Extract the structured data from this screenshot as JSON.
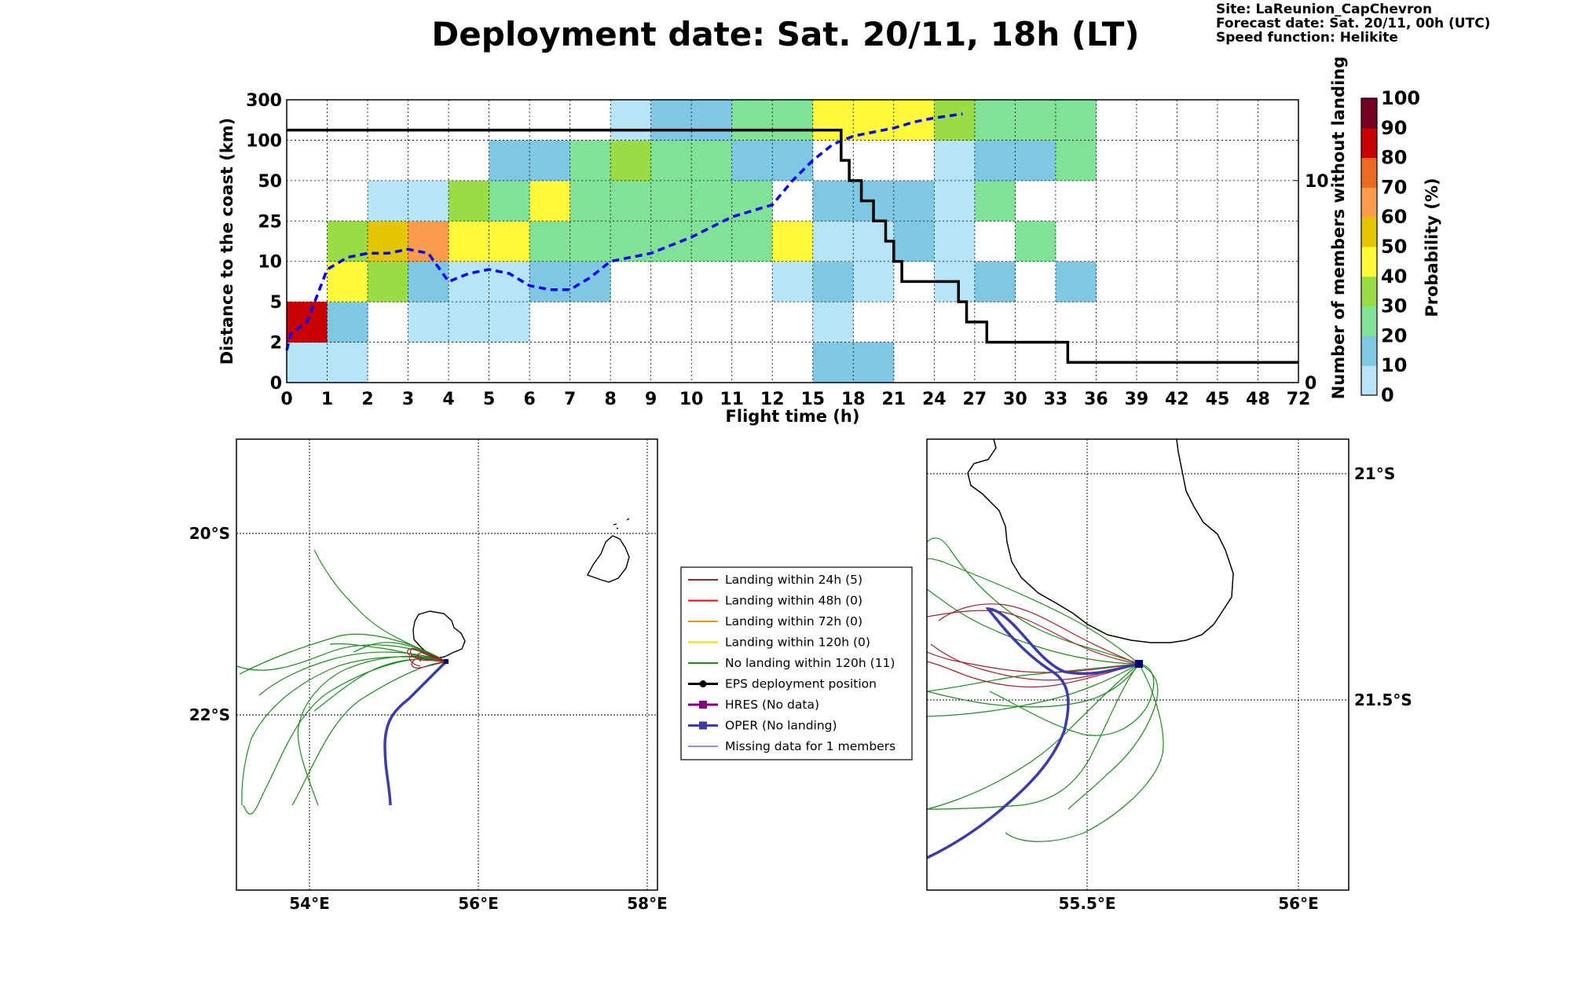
{
  "title": "Deployment date: Sat. 20/11, 18h (LT)",
  "info": [
    "Site: LaReunion_CapChevron",
    "Forecast date: Sat. 20/11, 00h (UTC)",
    "Speed function: Helikite"
  ],
  "colors": {
    "prob": [
      "#b8e4f8",
      "#7ec8e3",
      "#80e197",
      "#99dc43",
      "#fffb3c",
      "#e3c500",
      "#fb9c4f",
      "#ea6923",
      "#c90000",
      "#720022"
    ],
    "median": "#0000ff",
    "members": "#000000",
    "landing24": "#a0232d",
    "landing48": "#ff0000",
    "landing72": "#ff8c00",
    "landing120": "#ffd700",
    "nolanding": "#1c8c1c",
    "eps": "#000000",
    "hres": "#800080",
    "oper": "#3c3ca8",
    "missing": "#4b4bff"
  },
  "chart_data": [
    {
      "type": "heatmap",
      "xlabel": "Flight time (h)",
      "ylabel": "Distance to the coast (km)",
      "y2label": "Number of members without landing",
      "colorbar_label": "Probability (%)",
      "x_ticks": [
        "0",
        "1",
        "2",
        "3",
        "4",
        "5",
        "6",
        "7",
        "8",
        "9",
        "10",
        "11",
        "12",
        "15",
        "18",
        "21",
        "24",
        "27",
        "30",
        "33",
        "36",
        "39",
        "42",
        "45",
        "48",
        "72"
      ],
      "y_ticks": [
        "0",
        "2",
        "5",
        "10",
        "25",
        "50",
        "100",
        "300"
      ],
      "y2_ticks": [
        "0",
        "10"
      ],
      "y2lim": [
        0,
        14
      ],
      "colorbar_ticks": [
        "0",
        "10",
        "20",
        "30",
        "40",
        "50",
        "60",
        "70",
        "80",
        "90",
        "100"
      ],
      "grid": true,
      "cells": [
        {
          "col": 0,
          "row": 0,
          "c": 0
        },
        {
          "col": 1,
          "row": 0,
          "c": 0
        },
        {
          "col": 13,
          "row": 0,
          "c": 1
        },
        {
          "col": 14,
          "row": 0,
          "c": 1
        },
        {
          "col": 0,
          "row": 1,
          "c": 8
        },
        {
          "col": 1,
          "row": 1,
          "c": 1
        },
        {
          "col": 3,
          "row": 1,
          "c": 0
        },
        {
          "col": 4,
          "row": 1,
          "c": 0
        },
        {
          "col": 5,
          "row": 1,
          "c": 0
        },
        {
          "col": 13,
          "row": 1,
          "c": 0
        },
        {
          "col": 1,
          "row": 2,
          "c": 4
        },
        {
          "col": 2,
          "row": 2,
          "c": 3
        },
        {
          "col": 3,
          "row": 2,
          "c": 1
        },
        {
          "col": 4,
          "row": 2,
          "c": 0
        },
        {
          "col": 5,
          "row": 2,
          "c": 0
        },
        {
          "col": 6,
          "row": 2,
          "c": 1
        },
        {
          "col": 7,
          "row": 2,
          "c": 1
        },
        {
          "col": 12,
          "row": 2,
          "c": 0
        },
        {
          "col": 13,
          "row": 2,
          "c": 1
        },
        {
          "col": 14,
          "row": 2,
          "c": 0
        },
        {
          "col": 16,
          "row": 2,
          "c": 0
        },
        {
          "col": 17,
          "row": 2,
          "c": 1
        },
        {
          "col": 19,
          "row": 2,
          "c": 1
        },
        {
          "col": 1,
          "row": 3,
          "c": 3
        },
        {
          "col": 2,
          "row": 3,
          "c": 5
        },
        {
          "col": 3,
          "row": 3,
          "c": 6
        },
        {
          "col": 4,
          "row": 3,
          "c": 4
        },
        {
          "col": 5,
          "row": 3,
          "c": 4
        },
        {
          "col": 6,
          "row": 3,
          "c": 2
        },
        {
          "col": 7,
          "row": 3,
          "c": 2
        },
        {
          "col": 8,
          "row": 3,
          "c": 2
        },
        {
          "col": 9,
          "row": 3,
          "c": 2
        },
        {
          "col": 10,
          "row": 3,
          "c": 2
        },
        {
          "col": 11,
          "row": 3,
          "c": 2
        },
        {
          "col": 12,
          "row": 3,
          "c": 4
        },
        {
          "col": 13,
          "row": 3,
          "c": 0
        },
        {
          "col": 14,
          "row": 3,
          "c": 0
        },
        {
          "col": 15,
          "row": 3,
          "c": 1
        },
        {
          "col": 16,
          "row": 3,
          "c": 0
        },
        {
          "col": 18,
          "row": 3,
          "c": 2
        },
        {
          "col": 2,
          "row": 4,
          "c": 0
        },
        {
          "col": 3,
          "row": 4,
          "c": 0
        },
        {
          "col": 4,
          "row": 4,
          "c": 3
        },
        {
          "col": 5,
          "row": 4,
          "c": 2
        },
        {
          "col": 6,
          "row": 4,
          "c": 4
        },
        {
          "col": 7,
          "row": 4,
          "c": 2
        },
        {
          "col": 8,
          "row": 4,
          "c": 2
        },
        {
          "col": 9,
          "row": 4,
          "c": 2
        },
        {
          "col": 10,
          "row": 4,
          "c": 2
        },
        {
          "col": 11,
          "row": 4,
          "c": 2
        },
        {
          "col": 13,
          "row": 4,
          "c": 1
        },
        {
          "col": 14,
          "row": 4,
          "c": 1
        },
        {
          "col": 15,
          "row": 4,
          "c": 1
        },
        {
          "col": 16,
          "row": 4,
          "c": 0
        },
        {
          "col": 17,
          "row": 4,
          "c": 2
        },
        {
          "col": 5,
          "row": 5,
          "c": 1
        },
        {
          "col": 6,
          "row": 5,
          "c": 1
        },
        {
          "col": 7,
          "row": 5,
          "c": 2
        },
        {
          "col": 8,
          "row": 5,
          "c": 3
        },
        {
          "col": 9,
          "row": 5,
          "c": 2
        },
        {
          "col": 10,
          "row": 5,
          "c": 2
        },
        {
          "col": 11,
          "row": 5,
          "c": 1
        },
        {
          "col": 12,
          "row": 5,
          "c": 1
        },
        {
          "col": 16,
          "row": 5,
          "c": 0
        },
        {
          "col": 17,
          "row": 5,
          "c": 1
        },
        {
          "col": 18,
          "row": 5,
          "c": 1
        },
        {
          "col": 19,
          "row": 5,
          "c": 2
        },
        {
          "col": 8,
          "row": 6,
          "c": 0
        },
        {
          "col": 9,
          "row": 6,
          "c": 1
        },
        {
          "col": 10,
          "row": 6,
          "c": 1
        },
        {
          "col": 11,
          "row": 6,
          "c": 2
        },
        {
          "col": 12,
          "row": 6,
          "c": 2
        },
        {
          "col": 13,
          "row": 6,
          "c": 4
        },
        {
          "col": 14,
          "row": 6,
          "c": 4
        },
        {
          "col": 15,
          "row": 6,
          "c": 4
        },
        {
          "col": 16,
          "row": 6,
          "c": 3
        },
        {
          "col": 17,
          "row": 6,
          "c": 2
        },
        {
          "col": 18,
          "row": 6,
          "c": 2
        },
        {
          "col": 19,
          "row": 6,
          "c": 2
        }
      ],
      "median_line": [
        [
          0,
          0.8
        ],
        [
          0.1,
          1.2
        ],
        [
          0.5,
          1.5
        ],
        [
          1,
          2.8
        ],
        [
          1.5,
          3.1
        ],
        [
          2,
          3.2
        ],
        [
          2.5,
          3.2
        ],
        [
          3,
          3.3
        ],
        [
          3.5,
          3.2
        ],
        [
          4,
          2.5
        ],
        [
          4.5,
          2.7
        ],
        [
          5,
          2.8
        ],
        [
          5.5,
          2.7
        ],
        [
          6,
          2.4
        ],
        [
          6.5,
          2.3
        ],
        [
          7,
          2.3
        ],
        [
          7.5,
          2.6
        ],
        [
          8,
          3.0
        ],
        [
          9,
          3.2
        ],
        [
          10,
          3.6
        ],
        [
          11,
          4.1
        ],
        [
          12,
          4.4
        ],
        [
          12.5,
          5.0
        ],
        [
          13,
          5.5
        ],
        [
          13.5,
          5.9
        ],
        [
          14,
          6.1
        ],
        [
          15,
          6.3
        ],
        [
          15.5,
          6.45
        ],
        [
          16,
          6.55
        ],
        [
          16.7,
          6.65
        ]
      ],
      "members_line": [
        [
          0,
          12.5
        ],
        [
          13.7,
          12.5
        ],
        [
          13.7,
          11.0
        ],
        [
          13.9,
          11.0
        ],
        [
          13.9,
          10.0
        ],
        [
          14.2,
          10.0
        ],
        [
          14.2,
          9.0
        ],
        [
          14.5,
          9.0
        ],
        [
          14.5,
          8.0
        ],
        [
          14.8,
          8.0
        ],
        [
          14.8,
          7.0
        ],
        [
          15.0,
          7.0
        ],
        [
          15.0,
          6.0
        ],
        [
          15.2,
          6.0
        ],
        [
          15.2,
          5.0
        ],
        [
          16.6,
          5.0
        ],
        [
          16.6,
          4.0
        ],
        [
          16.8,
          4.0
        ],
        [
          16.8,
          3.0
        ],
        [
          17.3,
          3.0
        ],
        [
          17.3,
          2.0
        ],
        [
          19.3,
          2.0
        ],
        [
          19.3,
          1.0
        ],
        [
          25,
          1.0
        ]
      ]
    },
    {
      "type": "map",
      "lon_ticks": [
        "54°E",
        "56°E",
        "58°E"
      ],
      "lat_ticks": [
        "20°S",
        "22°S"
      ],
      "legend": [
        {
          "label": "Landing within 24h (5)",
          "color": "landing24",
          "marker": "none"
        },
        {
          "label": "Landing within 48h (0)",
          "color": "landing48",
          "marker": "none"
        },
        {
          "label": "Landing within 72h (0)",
          "color": "landing72",
          "marker": "none"
        },
        {
          "label": "Landing within 120h (0)",
          "color": "landing120",
          "marker": "none"
        },
        {
          "label": "No landing within 120h (11)",
          "color": "nolanding",
          "marker": "none"
        },
        {
          "label": "EPS deployment position",
          "color": "eps",
          "marker": "circle"
        },
        {
          "label": "HRES (No data)",
          "color": "hres",
          "marker": "square"
        },
        {
          "label": "OPER (No landing)",
          "color": "oper",
          "marker": "square"
        },
        {
          "label": "Missing data for 1 members",
          "color": "missing",
          "marker": "thin"
        }
      ]
    },
    {
      "type": "map",
      "lon_ticks": [
        "55.5°E",
        "56°E"
      ],
      "lat_ticks": [
        "21°S",
        "21.5°S"
      ]
    }
  ]
}
